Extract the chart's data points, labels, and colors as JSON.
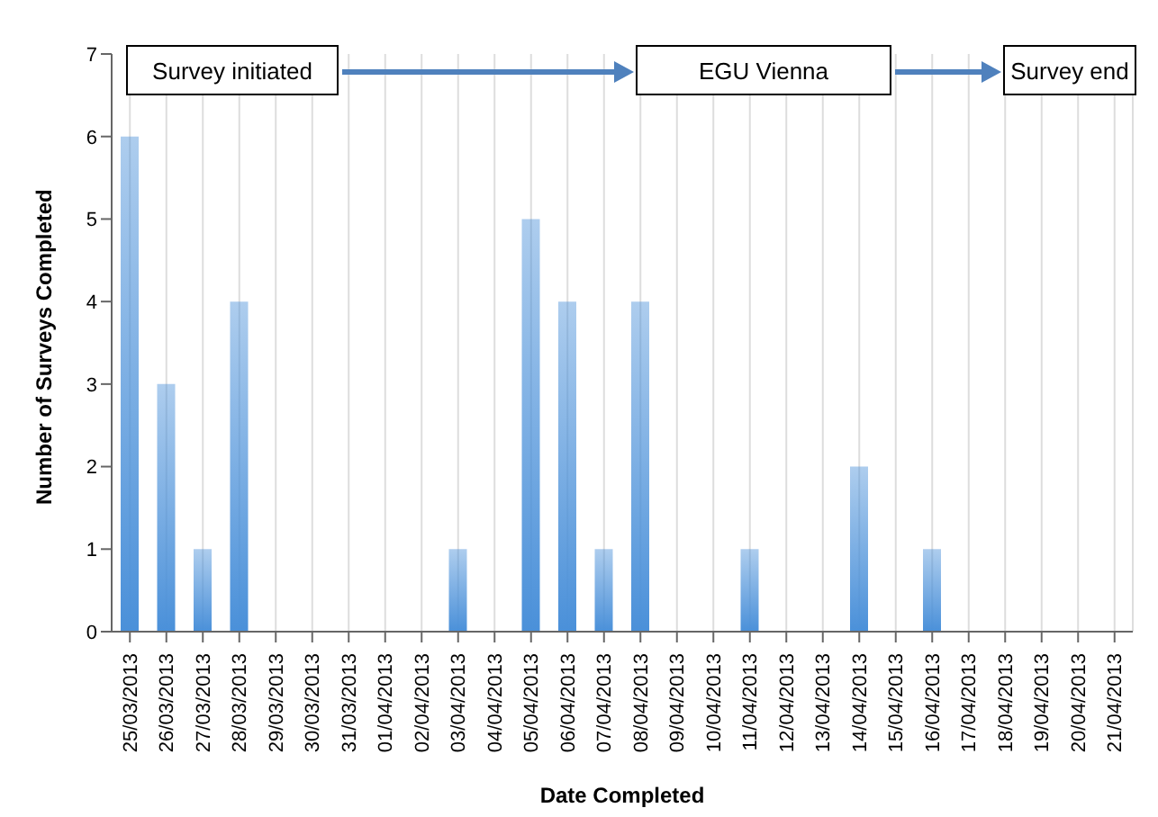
{
  "chart_data": {
    "type": "bar",
    "xlabel": "Date Completed",
    "ylabel": "Number of Surveys Completed",
    "categories": [
      "25/03/2013",
      "26/03/2013",
      "27/03/2013",
      "28/03/2013",
      "29/03/2013",
      "30/03/2013",
      "31/03/2013",
      "01/04/2013",
      "02/04/2013",
      "03/04/2013",
      "04/04/2013",
      "05/04/2013",
      "06/04/2013",
      "07/04/2013",
      "08/04/2013",
      "09/04/2013",
      "10/04/2013",
      "11/04/2013",
      "12/04/2013",
      "13/04/2013",
      "14/04/2013",
      "15/04/2013",
      "16/04/2013",
      "17/04/2013",
      "18/04/2013",
      "19/04/2013",
      "20/04/2013",
      "21/04/2013"
    ],
    "values": [
      6,
      3,
      1,
      4,
      0,
      0,
      0,
      0,
      0,
      1,
      0,
      5,
      4,
      1,
      4,
      0,
      0,
      1,
      0,
      0,
      2,
      0,
      1,
      0,
      0,
      0,
      0,
      0
    ],
    "color": "#4a90d9",
    "ylim": [
      0,
      7
    ],
    "yticks": [
      0,
      1,
      2,
      3,
      4,
      5,
      6,
      7
    ],
    "grid": "x",
    "annotations": [
      "Survey initiated",
      "EGU Vienna",
      "Survey end"
    ]
  }
}
